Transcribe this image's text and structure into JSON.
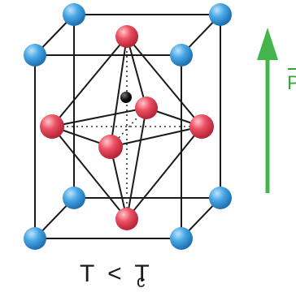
{
  "diagram": {
    "condition": {
      "lhs": "T",
      "operator": "<",
      "rhs_base": "T",
      "rhs_subscript": "c"
    },
    "polarization_label": "P",
    "colors": {
      "corner_atom": "#3a9ee0",
      "oxygen_atom": "#e8475a",
      "center_atom": "#0d0d0d",
      "arrow": "#43b54b",
      "lines": "#1a1a1a"
    },
    "atoms": {
      "corner_count": 8,
      "oxygen_count": 6,
      "center_count": 1
    }
  }
}
